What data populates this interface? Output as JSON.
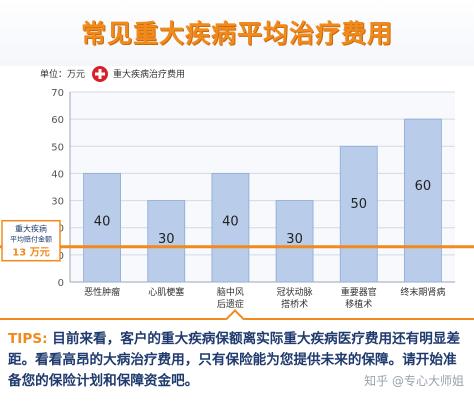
{
  "title": "常见重大疾病平均治疗费用",
  "unit_label": "单位：万元",
  "legend_label": "重大疾病治疗费用",
  "threshold_box": {
    "line1": "重大疾病",
    "line2": "平均赔付金额",
    "value": "13 万元"
  },
  "tips": {
    "label": "TIPS:",
    "text": "目前来看，客户的重大疾病保额离实际重大疾病医疗费用还有明显差距。看看高昂的大病治疗费用，只有保险能为您提供未来的保障。请开始准备您的保险计划和保障资金吧。"
  },
  "watermark": "知乎 @专心大师姐",
  "colors": {
    "accent": "#f08a1d",
    "bar": "#b9ccea",
    "bar_border": "#8fa9d6",
    "text": "#1f3a6e"
  },
  "chart_data": {
    "type": "bar",
    "title": "常见重大疾病平均治疗费用",
    "ylabel": "单位：万元",
    "ylim": [
      0,
      70
    ],
    "yticks": [
      0,
      10,
      20,
      30,
      40,
      50,
      60,
      70
    ],
    "grid": true,
    "categories": [
      [
        "恶性肿瘤"
      ],
      [
        "心肌梗塞"
      ],
      [
        "脑中风",
        "后遗症"
      ],
      [
        "冠状动脉",
        "搭桥术"
      ],
      [
        "重要器官",
        "移植术"
      ],
      [
        "终末期肾病"
      ]
    ],
    "values": [
      40,
      30,
      40,
      30,
      50,
      60
    ],
    "data_labels": [
      "40",
      "30",
      "40",
      "30",
      "50",
      "60"
    ],
    "series": [
      {
        "name": "重大疾病治疗费用",
        "values": [
          40,
          30,
          40,
          30,
          50,
          60
        ]
      }
    ],
    "reference_line": {
      "value": 13,
      "label": "13 万元"
    }
  }
}
